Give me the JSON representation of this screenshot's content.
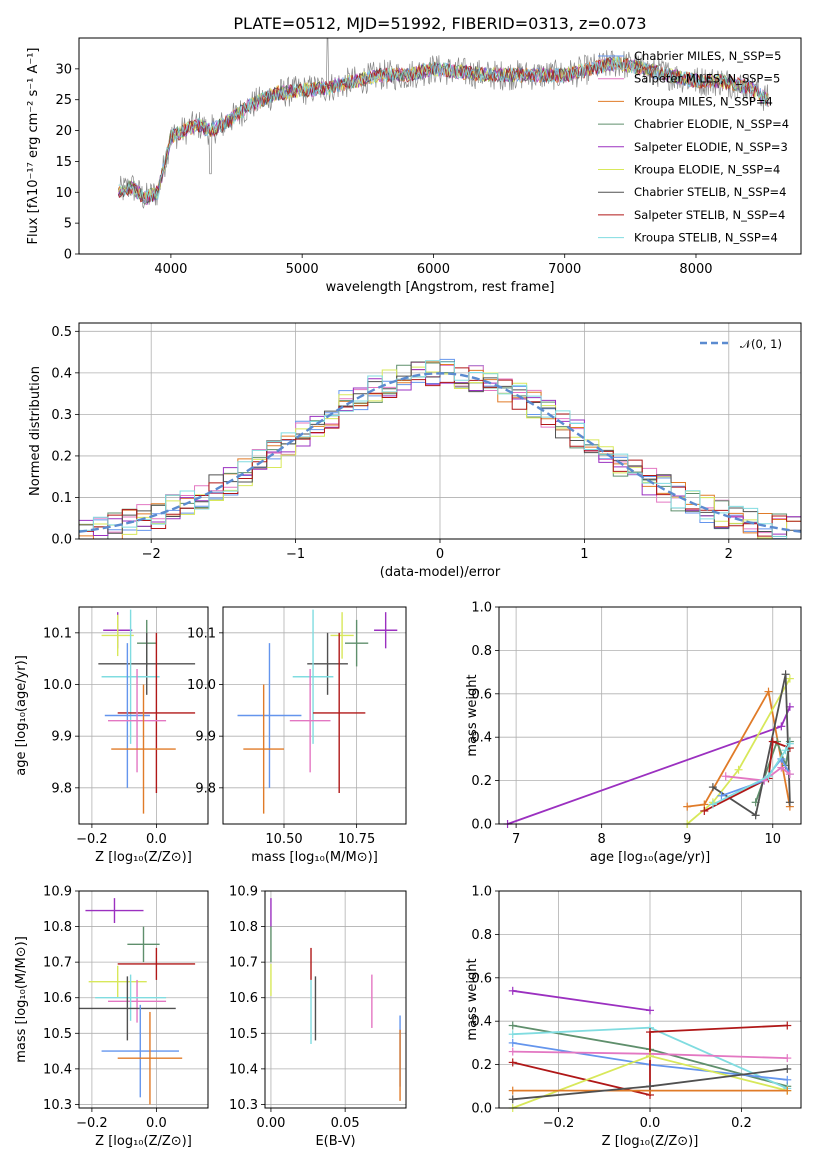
{
  "figure_title": "PLATE=0512, MJD=51992, FIBERID=0313, z=0.073",
  "chart_data": [
    {
      "type": "line",
      "xlabel": "wavelength [Angstrom, rest frame]",
      "ylabel": "Flux [fλ10⁻¹⁷ erg cm⁻² s⁻¹ A⁻¹]",
      "xlim": [
        3300,
        8800
      ],
      "ylim": [
        0,
        35
      ],
      "x_ticks": [
        "4000",
        "5000",
        "6000",
        "7000",
        "8000"
      ],
      "y_ticks": [
        "0",
        "5",
        "10",
        "15",
        "20",
        "25",
        "30"
      ],
      "grid": false,
      "legend_position": "top-right",
      "spectrum_shape": {
        "x": [
          3600,
          3700,
          3800,
          3900,
          4000,
          4100,
          4200,
          4300,
          4400,
          4600,
          4800,
          5000,
          5200,
          5400,
          5600,
          5800,
          6000,
          6200,
          6400,
          6600,
          6800,
          7000,
          7200,
          7400,
          7600,
          7800,
          8000,
          8200,
          8400,
          8550
        ],
        "y": [
          10,
          11,
          9,
          10,
          19,
          20,
          21,
          20,
          21,
          24,
          26,
          26.5,
          27,
          28,
          29,
          29,
          30,
          29.5,
          29,
          29,
          29,
          29,
          30,
          31,
          30,
          29,
          28,
          28,
          27,
          25
        ]
      },
      "series": [
        {
          "name": "Chabrier MILES, N_SSP=5",
          "color": "#6495ed"
        },
        {
          "name": "Salpeter MILES, N_SSP=5",
          "color": "#e377c2"
        },
        {
          "name": "Kroupa MILES, N_SSP=4",
          "color": "#e07b28"
        },
        {
          "name": "Chabrier ELODIE, N_SSP=4",
          "color": "#5f8f6c"
        },
        {
          "name": "Salpeter ELODIE, N_SSP=3",
          "color": "#9b30c0"
        },
        {
          "name": "Kroupa ELODIE, N_SSP=4",
          "color": "#d8e85a"
        },
        {
          "name": "Chabrier STELIB, N_SSP=4",
          "color": "#505050"
        },
        {
          "name": "Salpeter STELIB, N_SSP=4",
          "color": "#b01818"
        },
        {
          "name": "Kroupa STELIB, N_SSP=4",
          "color": "#80dce0"
        }
      ]
    },
    {
      "type": "line",
      "xlabel": "(data-model)/error",
      "ylabel": "Normed distribution",
      "xlim": [
        -2.5,
        2.5
      ],
      "ylim": [
        0,
        0.52
      ],
      "x_ticks": [
        "−2",
        "−1",
        "0",
        "1",
        "2"
      ],
      "y_ticks": [
        "0.0",
        "0.1",
        "0.2",
        "0.3",
        "0.4",
        "0.5"
      ],
      "grid": true,
      "legend_position": "top-right",
      "legend_entry": "𝒩(0, 1)",
      "gaussian": {
        "mu": 0,
        "sigma": 1,
        "color": "#5b8bd0"
      },
      "bin_width": 0.1
    },
    {
      "type": "scatter",
      "xlabel": "Z [log₁₀(Z/Z⊙)]",
      "ylabel": "age  [log₁₀(age/yr)]",
      "xlim": [
        -0.24,
        0.16
      ],
      "ylim": [
        9.73,
        10.15
      ],
      "x_ticks": [
        "−0.2",
        "0.0"
      ],
      "y_ticks": [
        "9.8",
        "9.9",
        "10.0",
        "10.1"
      ],
      "grid": true,
      "points": [
        {
          "x": -0.12,
          "y": 10.105,
          "xerr": 0.045,
          "yerr": 0.035,
          "color": "#9b30c0"
        },
        {
          "x": -0.12,
          "y": 10.095,
          "xerr": 0.05,
          "yerr": 0.04,
          "color": "#d8e85a"
        },
        {
          "x": -0.03,
          "y": 10.08,
          "xerr": 0.03,
          "yerr": 0.045,
          "color": "#5f8f6c"
        },
        {
          "x": -0.03,
          "y": 10.04,
          "xerr": 0.15,
          "yerr": 0.06,
          "color": "#505050"
        },
        {
          "x": -0.08,
          "y": 10.015,
          "xerr": 0.09,
          "yerr": 0.13,
          "color": "#80dce0"
        },
        {
          "x": 0.0,
          "y": 9.945,
          "xerr": 0.12,
          "yerr": 0.155,
          "color": "#b01818"
        },
        {
          "x": -0.09,
          "y": 9.94,
          "xerr": 0.07,
          "yerr": 0.14,
          "color": "#6495ed"
        },
        {
          "x": -0.06,
          "y": 9.93,
          "xerr": 0.09,
          "yerr": 0.1,
          "color": "#e377c2"
        },
        {
          "x": -0.04,
          "y": 9.875,
          "xerr": 0.1,
          "yerr": 0.125,
          "color": "#e07b28"
        }
      ]
    },
    {
      "type": "scatter",
      "xlabel": "mass [log₁₀(M/M⊙)]",
      "ylabel": "",
      "xlim": [
        10.29,
        10.92
      ],
      "ylim": [
        9.73,
        10.15
      ],
      "x_ticks": [
        "10.50",
        "10.75"
      ],
      "y_ticks": [
        "9.8",
        "9.9",
        "10.0",
        "10.1"
      ],
      "grid": true,
      "points": [
        {
          "x": 10.85,
          "y": 10.105,
          "xerr": 0.04,
          "yerr": 0.035,
          "color": "#9b30c0"
        },
        {
          "x": 10.7,
          "y": 10.095,
          "xerr": 0.04,
          "yerr": 0.045,
          "color": "#d8e85a"
        },
        {
          "x": 10.75,
          "y": 10.08,
          "xerr": 0.04,
          "yerr": 0.045,
          "color": "#5f8f6c"
        },
        {
          "x": 10.65,
          "y": 10.04,
          "xerr": 0.07,
          "yerr": 0.06,
          "color": "#505050"
        },
        {
          "x": 10.6,
          "y": 10.015,
          "xerr": 0.07,
          "yerr": 0.13,
          "color": "#80dce0"
        },
        {
          "x": 10.69,
          "y": 9.945,
          "xerr": 0.09,
          "yerr": 0.155,
          "color": "#b01818"
        },
        {
          "x": 10.45,
          "y": 9.94,
          "xerr": 0.11,
          "yerr": 0.14,
          "color": "#6495ed"
        },
        {
          "x": 10.59,
          "y": 9.93,
          "xerr": 0.07,
          "yerr": 0.1,
          "color": "#e377c2"
        },
        {
          "x": 10.43,
          "y": 9.875,
          "xerr": 0.07,
          "yerr": 0.125,
          "color": "#e07b28"
        }
      ]
    },
    {
      "type": "line",
      "xlabel": "age  [log₁₀(age/yr)]",
      "ylabel": "mass weight",
      "xlim": [
        6.8,
        10.33
      ],
      "ylim": [
        0,
        1.0
      ],
      "x_ticks": [
        "7",
        "8",
        "9",
        "10"
      ],
      "y_ticks": [
        "0.0",
        "0.2",
        "0.4",
        "0.6",
        "0.8",
        "1.0"
      ],
      "grid": true,
      "series": [
        {
          "color": "#9b30c0",
          "x": [
            6.9,
            10.1,
            10.2
          ],
          "y": [
            0.0,
            0.45,
            0.54
          ]
        },
        {
          "color": "#e07b28",
          "x": [
            9.0,
            9.2,
            9.95,
            10.2
          ],
          "y": [
            0.08,
            0.09,
            0.61,
            0.08
          ]
        },
        {
          "color": "#d8e85a",
          "x": [
            9.0,
            9.3,
            9.6,
            10.2
          ],
          "y": [
            0.0,
            0.1,
            0.25,
            0.67
          ]
        },
        {
          "color": "#5f8f6c",
          "x": [
            9.8,
            10.05,
            10.15,
            10.2
          ],
          "y": [
            0.1,
            0.38,
            0.27,
            0.38
          ]
        },
        {
          "color": "#505050",
          "x": [
            9.3,
            9.8,
            10.15,
            10.2
          ],
          "y": [
            0.17,
            0.04,
            0.69,
            0.1
          ]
        },
        {
          "color": "#b01818",
          "x": [
            9.2,
            9.95,
            10.0,
            10.2
          ],
          "y": [
            0.06,
            0.21,
            0.38,
            0.35
          ]
        },
        {
          "color": "#6495ed",
          "x": [
            9.4,
            9.9,
            10.1,
            10.2
          ],
          "y": [
            0.13,
            0.2,
            0.3,
            0.23
          ]
        },
        {
          "color": "#e377c2",
          "x": [
            9.45,
            9.9,
            10.1,
            10.2
          ],
          "y": [
            0.22,
            0.2,
            0.26,
            0.23
          ]
        },
        {
          "color": "#80dce0",
          "x": [
            9.3,
            9.95,
            10.15,
            10.2
          ],
          "y": [
            0.09,
            0.22,
            0.34,
            0.37
          ]
        }
      ]
    },
    {
      "type": "scatter",
      "xlabel": "Z [log₁₀(Z/Z⊙)]",
      "ylabel": "mass [log₁₀(M/M⊙)]",
      "xlim": [
        -0.24,
        0.16
      ],
      "ylim": [
        10.29,
        10.9
      ],
      "x_ticks": [
        "−0.2",
        "0.0"
      ],
      "y_ticks": [
        "10.3",
        "10.4",
        "10.5",
        "10.6",
        "10.7",
        "10.8",
        "10.9"
      ],
      "grid": true,
      "points": [
        {
          "x": -0.13,
          "y": 10.845,
          "xerr": 0.09,
          "yerr": 0.035,
          "color": "#9b30c0"
        },
        {
          "x": -0.04,
          "y": 10.75,
          "xerr": 0.05,
          "yerr": 0.05,
          "color": "#5f8f6c"
        },
        {
          "x": 0.0,
          "y": 10.695,
          "xerr": 0.12,
          "yerr": 0.045,
          "color": "#b01818"
        },
        {
          "x": -0.12,
          "y": 10.645,
          "xerr": 0.09,
          "yerr": 0.045,
          "color": "#d8e85a"
        },
        {
          "x": -0.06,
          "y": 10.59,
          "xerr": 0.09,
          "yerr": 0.06,
          "color": "#e377c2"
        },
        {
          "x": -0.08,
          "y": 10.6,
          "xerr": 0.11,
          "yerr": 0.065,
          "color": "#80dce0"
        },
        {
          "x": -0.09,
          "y": 10.57,
          "xerr": 0.15,
          "yerr": 0.09,
          "color": "#505050"
        },
        {
          "x": -0.05,
          "y": 10.45,
          "xerr": 0.12,
          "yerr": 0.13,
          "color": "#6495ed"
        },
        {
          "x": -0.02,
          "y": 10.43,
          "xerr": 0.1,
          "yerr": 0.13,
          "color": "#e07b28"
        }
      ]
    },
    {
      "type": "scatter",
      "xlabel": "E(B-V)",
      "ylabel": "",
      "xlim": [
        -0.004,
        0.091
      ],
      "ylim": [
        10.29,
        10.9
      ],
      "x_ticks": [
        "0.00",
        "0.05"
      ],
      "y_ticks": [
        "10.3",
        "10.4",
        "10.5",
        "10.6",
        "10.7",
        "10.8",
        "10.9"
      ],
      "grid": true,
      "points": [
        {
          "x": 0.0,
          "y": 10.84,
          "xerr": 0,
          "yerr": 0.04,
          "color": "#9b30c0"
        },
        {
          "x": 0.0,
          "y": 10.75,
          "xerr": 0,
          "yerr": 0.05,
          "color": "#5f8f6c"
        },
        {
          "x": 0.0,
          "y": 10.65,
          "xerr": 0,
          "yerr": 0.045,
          "color": "#d8e85a"
        },
        {
          "x": 0.027,
          "y": 10.695,
          "xerr": 0,
          "yerr": 0.045,
          "color": "#b01818"
        },
        {
          "x": 0.027,
          "y": 10.56,
          "xerr": 0,
          "yerr": 0.09,
          "color": "#80dce0"
        },
        {
          "x": 0.03,
          "y": 10.57,
          "xerr": 0,
          "yerr": 0.09,
          "color": "#505050"
        },
        {
          "x": 0.068,
          "y": 10.59,
          "xerr": 0,
          "yerr": 0.075,
          "color": "#e377c2"
        },
        {
          "x": 0.087,
          "y": 10.45,
          "xerr": 0,
          "yerr": 0.1,
          "color": "#6495ed"
        },
        {
          "x": 0.087,
          "y": 10.41,
          "xerr": 0,
          "yerr": 0.1,
          "color": "#e07b28"
        }
      ]
    },
    {
      "type": "line",
      "xlabel": "Z [log₁₀(Z/Z⊙)]",
      "ylabel": "mass weight",
      "xlim": [
        -0.33,
        0.33
      ],
      "ylim": [
        0,
        1.0
      ],
      "x_ticks": [
        "−0.2",
        "0.0",
        "0.2"
      ],
      "y_ticks": [
        "0.0",
        "0.2",
        "0.4",
        "0.6",
        "0.8",
        "1.0"
      ],
      "grid": true,
      "series": [
        {
          "color": "#9b30c0",
          "x": [
            -0.3,
            0.0
          ],
          "y": [
            0.54,
            0.45
          ]
        },
        {
          "color": "#5f8f6c",
          "x": [
            -0.3,
            0.0,
            0.3
          ],
          "y": [
            0.38,
            0.27,
            0.1
          ]
        },
        {
          "color": "#80dce0",
          "x": [
            -0.3,
            0.0,
            0.3
          ],
          "y": [
            0.34,
            0.37,
            0.09
          ]
        },
        {
          "color": "#6495ed",
          "x": [
            -0.3,
            0.0,
            0.3
          ],
          "y": [
            0.3,
            0.2,
            0.13
          ]
        },
        {
          "color": "#e377c2",
          "x": [
            -0.3,
            0.0,
            0.3
          ],
          "y": [
            0.26,
            0.25,
            0.23
          ]
        },
        {
          "color": "#b01818",
          "x": [
            -0.3,
            0.0,
            0.0,
            0.3
          ],
          "y": [
            0.21,
            0.06,
            0.35,
            0.38
          ]
        },
        {
          "color": "#d8e85a",
          "x": [
            -0.3,
            0.0,
            0.3
          ],
          "y": [
            0.0,
            0.24,
            0.08
          ]
        },
        {
          "color": "#e07b28",
          "x": [
            -0.3,
            0.0,
            0.3
          ],
          "y": [
            0.08,
            0.08,
            0.08
          ]
        },
        {
          "color": "#505050",
          "x": [
            -0.3,
            0.0,
            0.3
          ],
          "y": [
            0.04,
            0.1,
            0.18
          ]
        }
      ]
    }
  ]
}
